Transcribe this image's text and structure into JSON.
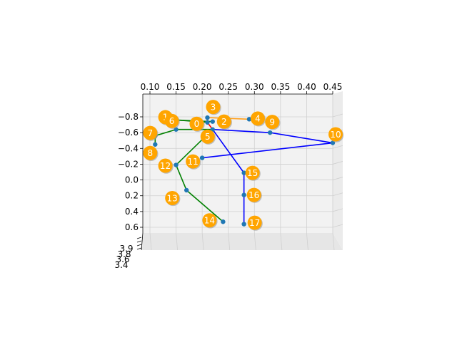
{
  "chart_data": {
    "type": "scatter",
    "projection": "3d",
    "x_ticks": [
      "0.10",
      "0.15",
      "0.20",
      "0.25",
      "0.30",
      "0.35",
      "0.40",
      "0.45"
    ],
    "y_ticks": [
      "−0.8",
      "−0.6",
      "−0.4",
      "−0.2",
      "0.0",
      "0.2",
      "0.4",
      "0.6"
    ],
    "z_ticks": [
      "3.4",
      "3.6",
      "3.8",
      "3.9"
    ],
    "grid": true,
    "colors": {
      "orange": "#ff9f1a",
      "green": "#008000",
      "blue": "#0000ff",
      "red": "#ff0000",
      "point": "#1f77b4",
      "badge": "#ffa500"
    },
    "keypoints": [
      {
        "label": "0",
        "x": 0.21,
        "y": -0.73
      },
      {
        "label": "1",
        "x": 0.15,
        "y": -0.76
      },
      {
        "label": "2",
        "x": 0.22,
        "y": -0.74
      },
      {
        "label": "3",
        "x": 0.21,
        "y": -0.79
      },
      {
        "label": "4",
        "x": 0.29,
        "y": -0.77
      },
      {
        "label": "5",
        "x": 0.22,
        "y": -0.64
      },
      {
        "label": "6",
        "x": 0.15,
        "y": -0.64
      },
      {
        "label": "7",
        "x": 0.11,
        "y": -0.56
      },
      {
        "label": "8",
        "x": 0.11,
        "y": -0.45
      },
      {
        "label": "9",
        "x": 0.33,
        "y": -0.6
      },
      {
        "label": "10",
        "x": 0.45,
        "y": -0.47
      },
      {
        "label": "11",
        "x": 0.2,
        "y": -0.28
      },
      {
        "label": "12",
        "x": 0.15,
        "y": -0.19
      },
      {
        "label": "13",
        "x": 0.17,
        "y": 0.13
      },
      {
        "label": "14",
        "x": 0.24,
        "y": 0.53
      },
      {
        "label": "15",
        "x": 0.28,
        "y": -0.09
      },
      {
        "label": "16",
        "x": 0.28,
        "y": 0.19
      },
      {
        "label": "17",
        "x": 0.28,
        "y": 0.56
      }
    ],
    "bones": [
      {
        "from": 0,
        "to": 1,
        "color": "green"
      },
      {
        "from": 1,
        "to": 2,
        "color": "green"
      },
      {
        "from": 0,
        "to": 3,
        "color": "orange"
      },
      {
        "from": 3,
        "to": 4,
        "color": "orange"
      },
      {
        "from": 0,
        "to": 5,
        "color": "red"
      },
      {
        "from": 5,
        "to": 6,
        "color": "green"
      },
      {
        "from": 6,
        "to": 7,
        "color": "green"
      },
      {
        "from": 7,
        "to": 8,
        "color": "green"
      },
      {
        "from": 5,
        "to": 9,
        "color": "blue"
      },
      {
        "from": 9,
        "to": 10,
        "color": "blue"
      },
      {
        "from": 10,
        "to": 11,
        "color": "blue"
      },
      {
        "from": 5,
        "to": 12,
        "color": "green"
      },
      {
        "from": 12,
        "to": 13,
        "color": "green"
      },
      {
        "from": 13,
        "to": 14,
        "color": "green"
      },
      {
        "from": 5,
        "to": 15,
        "color": "blue"
      },
      {
        "from": 15,
        "to": 16,
        "color": "blue"
      },
      {
        "from": 16,
        "to": 17,
        "color": "blue"
      }
    ]
  }
}
